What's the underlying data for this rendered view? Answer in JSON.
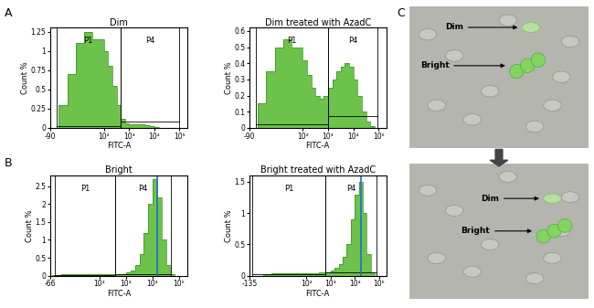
{
  "panel_labels": [
    "A",
    "B",
    "C"
  ],
  "chart_data": [
    {
      "type": "histogram",
      "title": "Dim",
      "x_label": "FITC-A",
      "y_label": "Count %",
      "log": "x",
      "xlim": [
        -90,
        200000
      ],
      "xticks": [
        -90,
        {
          "value": 100,
          "label": "10²"
        },
        {
          "value": 1000,
          "label": "10³"
        },
        {
          "value": 10000,
          "label": "10⁴"
        },
        {
          "value": 100000,
          "label": "10⁵"
        }
      ],
      "ylim": [
        0,
        1.3
      ],
      "yticks": [
        0,
        0.25,
        0.5,
        0.75,
        1,
        1.25
      ],
      "bins": [
        -60,
        -30,
        0,
        30,
        60,
        100,
        150,
        220,
        320,
        460,
        680,
        1000,
        1500,
        2200,
        3200,
        4600,
        6800,
        10000,
        15000,
        22000,
        32000,
        46000,
        68000,
        100000
      ],
      "counts": [
        0.3,
        0.7,
        1.1,
        1.25,
        1.15,
        1.0,
        0.8,
        0.55,
        0.3,
        0.12,
        0.06,
        0.05,
        0.05,
        0.04,
        0.04,
        0.03,
        0.02,
        0.01,
        0,
        0,
        0,
        0,
        0
      ],
      "color": "#6cc24a",
      "gates": [
        {
          "name": "P1",
          "range": [
            -68,
            450
          ],
          "level": 0.02
        },
        {
          "name": "P4",
          "range": [
            450,
            100000
          ],
          "level": 0.08
        }
      ]
    },
    {
      "type": "histogram",
      "title": "Dim treated with AzadC",
      "x_label": "FITC-A",
      "y_label": "Count %",
      "log": "x",
      "xlim": [
        -90,
        200000
      ],
      "xticks": [
        -90,
        {
          "value": 100,
          "label": "10²"
        },
        {
          "value": 1000,
          "label": "10³"
        },
        {
          "value": 10000,
          "label": "10⁴"
        },
        {
          "value": 100000,
          "label": "10⁵"
        }
      ],
      "ylim": [
        0,
        0.62
      ],
      "yticks": [
        0,
        0.1,
        0.2,
        0.3,
        0.4,
        0.5,
        0.6
      ],
      "bins": [
        -60,
        -30,
        0,
        30,
        60,
        100,
        150,
        220,
        320,
        460,
        680,
        1000,
        1500,
        2200,
        3200,
        4600,
        6800,
        10000,
        15000,
        22000,
        32000,
        46000,
        68000,
        100000
      ],
      "counts": [
        0.15,
        0.35,
        0.5,
        0.55,
        0.5,
        0.42,
        0.33,
        0.25,
        0.2,
        0.18,
        0.2,
        0.25,
        0.3,
        0.35,
        0.38,
        0.4,
        0.38,
        0.3,
        0.2,
        0.1,
        0.04,
        0.01,
        0
      ],
      "color": "#6cc24a",
      "gates": [
        {
          "name": "P1",
          "range": [
            -68,
            1000
          ],
          "level": 0.02
        },
        {
          "name": "P4",
          "range": [
            1000,
            90000
          ],
          "level": 0.07
        }
      ]
    },
    {
      "type": "histogram",
      "title": "Bright",
      "x_label": "FITC-A",
      "y_label": "Count %",
      "log": "x",
      "xlim": [
        -66,
        200000
      ],
      "xticks": [
        -66,
        {
          "value": 100,
          "label": "10²"
        },
        {
          "value": 1000,
          "label": "10³"
        },
        {
          "value": 10000,
          "label": "10⁴"
        },
        {
          "value": 100000,
          "label": "10⁵"
        }
      ],
      "ylim": [
        0,
        2.8
      ],
      "yticks": [
        0,
        0.5,
        1,
        1.5,
        2,
        2.5
      ],
      "bins": [
        -60,
        -30,
        0,
        30,
        60,
        100,
        150,
        220,
        320,
        460,
        680,
        1000,
        1500,
        2200,
        3200,
        4600,
        6800,
        10000,
        15000,
        22000,
        32000,
        46000,
        68000,
        100000
      ],
      "counts": [
        0.02,
        0.03,
        0.03,
        0.03,
        0.03,
        0.03,
        0.03,
        0.03,
        0.03,
        0.04,
        0.05,
        0.08,
        0.15,
        0.3,
        0.6,
        1.2,
        2.0,
        2.7,
        2.2,
        1.0,
        0.3,
        0.05,
        0
      ],
      "color": "#6cc24a",
      "reference_line": 15000,
      "gates": [
        {
          "name": "P1",
          "range": [
            -50,
            400
          ],
          "level": 0.02
        },
        {
          "name": "P4",
          "range": [
            400,
            50000
          ],
          "level": 0.05
        }
      ]
    },
    {
      "type": "histogram",
      "title": "Bright treated with AzadC",
      "x_label": "FITC-A",
      "y_label": "Count %",
      "log": "x",
      "xlim": [
        -135,
        200000
      ],
      "xticks": [
        -135,
        {
          "value": 100,
          "label": "10²"
        },
        {
          "value": 1000,
          "label": "10³"
        },
        {
          "value": 10000,
          "label": "10⁴"
        },
        {
          "value": 100000,
          "label": "10⁵"
        }
      ],
      "ylim": [
        0,
        1.6
      ],
      "yticks": [
        0,
        0.5,
        1,
        1.5
      ],
      "bins": [
        -60,
        -30,
        0,
        30,
        60,
        100,
        150,
        220,
        320,
        460,
        680,
        1000,
        1500,
        2200,
        3200,
        4600,
        6800,
        10000,
        15000,
        22000,
        32000,
        46000,
        68000,
        100000
      ],
      "counts": [
        0.03,
        0.04,
        0.04,
        0.04,
        0.04,
        0.04,
        0.04,
        0.04,
        0.05,
        0.05,
        0.06,
        0.08,
        0.12,
        0.18,
        0.3,
        0.5,
        0.9,
        1.3,
        1.5,
        1.0,
        0.35,
        0.06,
        0
      ],
      "color": "#6cc24a",
      "reference_line": 18000,
      "gates": [
        {
          "name": "P1",
          "range": [
            -100,
            600
          ],
          "level": 0.03
        },
        {
          "name": "P4",
          "range": [
            600,
            80000
          ],
          "level": 0.06
        }
      ]
    }
  ],
  "image_panel": {
    "images": [
      {
        "annotations": [
          "Dim",
          "Bright"
        ]
      },
      {
        "annotations": [
          "Dim",
          "Bright"
        ]
      }
    ]
  }
}
